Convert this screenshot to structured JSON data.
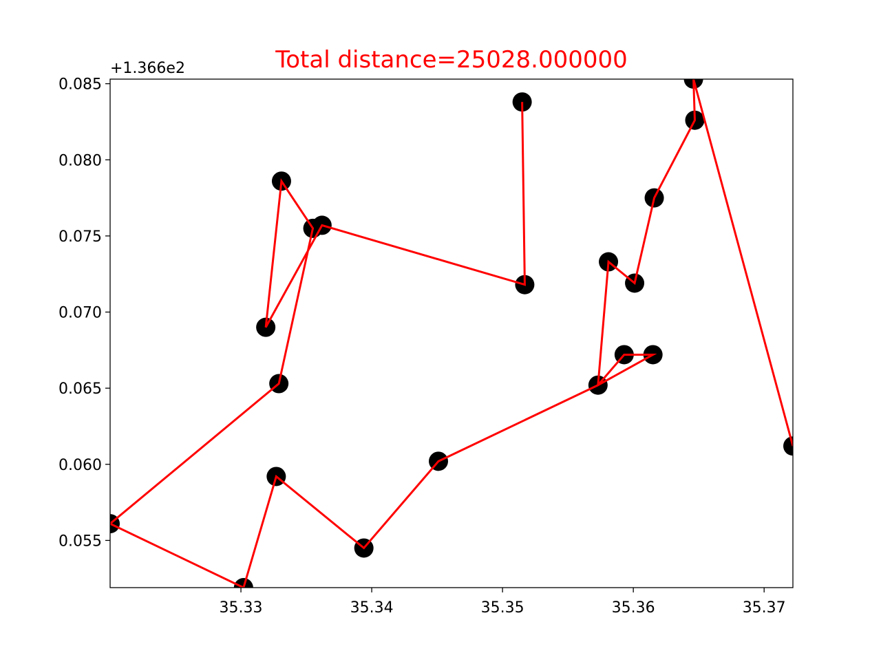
{
  "chart_data": {
    "type": "scatter",
    "title": "Total distance=25028.000000",
    "title_color": "#ff0000",
    "xlabel": "",
    "ylabel": "",
    "y_offset_label": "+1.366e2",
    "y_offset": 136.6,
    "xlim": [
      35.32,
      35.3722
    ],
    "ylim": [
      0.0519,
      0.0853
    ],
    "x_ticks": [
      35.33,
      35.34,
      35.35,
      35.36,
      35.37
    ],
    "x_tick_labels": [
      "35.33",
      "35.34",
      "35.35",
      "35.36",
      "35.37"
    ],
    "y_ticks": [
      0.055,
      0.06,
      0.065,
      0.07,
      0.075,
      0.08,
      0.085
    ],
    "y_tick_labels": [
      "0.055",
      "0.060",
      "0.065",
      "0.070",
      "0.075",
      "0.080",
      "0.085"
    ],
    "grid": false,
    "point_color": "#000000",
    "route_color": "#ff0000",
    "route": [
      {
        "x": 35.3515,
        "y": 0.0838
      },
      {
        "x": 35.3517,
        "y": 0.0718
      },
      {
        "x": 35.3362,
        "y": 0.0757
      },
      {
        "x": 35.3319,
        "y": 0.069
      },
      {
        "x": 35.3331,
        "y": 0.0786
      },
      {
        "x": 35.3355,
        "y": 0.0755
      },
      {
        "x": 35.3329,
        "y": 0.0653
      },
      {
        "x": 35.32,
        "y": 0.0561
      },
      {
        "x": 35.3302,
        "y": 0.0519
      },
      {
        "x": 35.3327,
        "y": 0.0592
      },
      {
        "x": 35.3394,
        "y": 0.0545
      },
      {
        "x": 35.3451,
        "y": 0.0602
      },
      {
        "x": 35.3573,
        "y": 0.0652
      },
      {
        "x": 35.3593,
        "y": 0.0672
      },
      {
        "x": 35.3615,
        "y": 0.0672
      },
      {
        "x": 35.3573,
        "y": 0.0652
      },
      {
        "x": 35.3581,
        "y": 0.0733
      },
      {
        "x": 35.3601,
        "y": 0.0719
      },
      {
        "x": 35.3616,
        "y": 0.0775
      },
      {
        "x": 35.3647,
        "y": 0.0826
      },
      {
        "x": 35.3646,
        "y": 0.0853
      },
      {
        "x": 35.3722,
        "y": 0.0612
      }
    ],
    "cities": [
      {
        "x": 35.3515,
        "y": 0.0838
      },
      {
        "x": 35.3517,
        "y": 0.0718
      },
      {
        "x": 35.3362,
        "y": 0.0757
      },
      {
        "x": 35.3319,
        "y": 0.069
      },
      {
        "x": 35.3331,
        "y": 0.0786
      },
      {
        "x": 35.3355,
        "y": 0.0755
      },
      {
        "x": 35.3329,
        "y": 0.0653
      },
      {
        "x": 35.32,
        "y": 0.0561
      },
      {
        "x": 35.3302,
        "y": 0.0519
      },
      {
        "x": 35.3327,
        "y": 0.0592
      },
      {
        "x": 35.3394,
        "y": 0.0545
      },
      {
        "x": 35.3451,
        "y": 0.0602
      },
      {
        "x": 35.3573,
        "y": 0.0652
      },
      {
        "x": 35.3593,
        "y": 0.0672
      },
      {
        "x": 35.3615,
        "y": 0.0672
      },
      {
        "x": 35.3581,
        "y": 0.0733
      },
      {
        "x": 35.3601,
        "y": 0.0719
      },
      {
        "x": 35.3616,
        "y": 0.0775
      },
      {
        "x": 35.3647,
        "y": 0.0826
      },
      {
        "x": 35.3646,
        "y": 0.0853
      },
      {
        "x": 35.3722,
        "y": 0.0612
      }
    ]
  }
}
